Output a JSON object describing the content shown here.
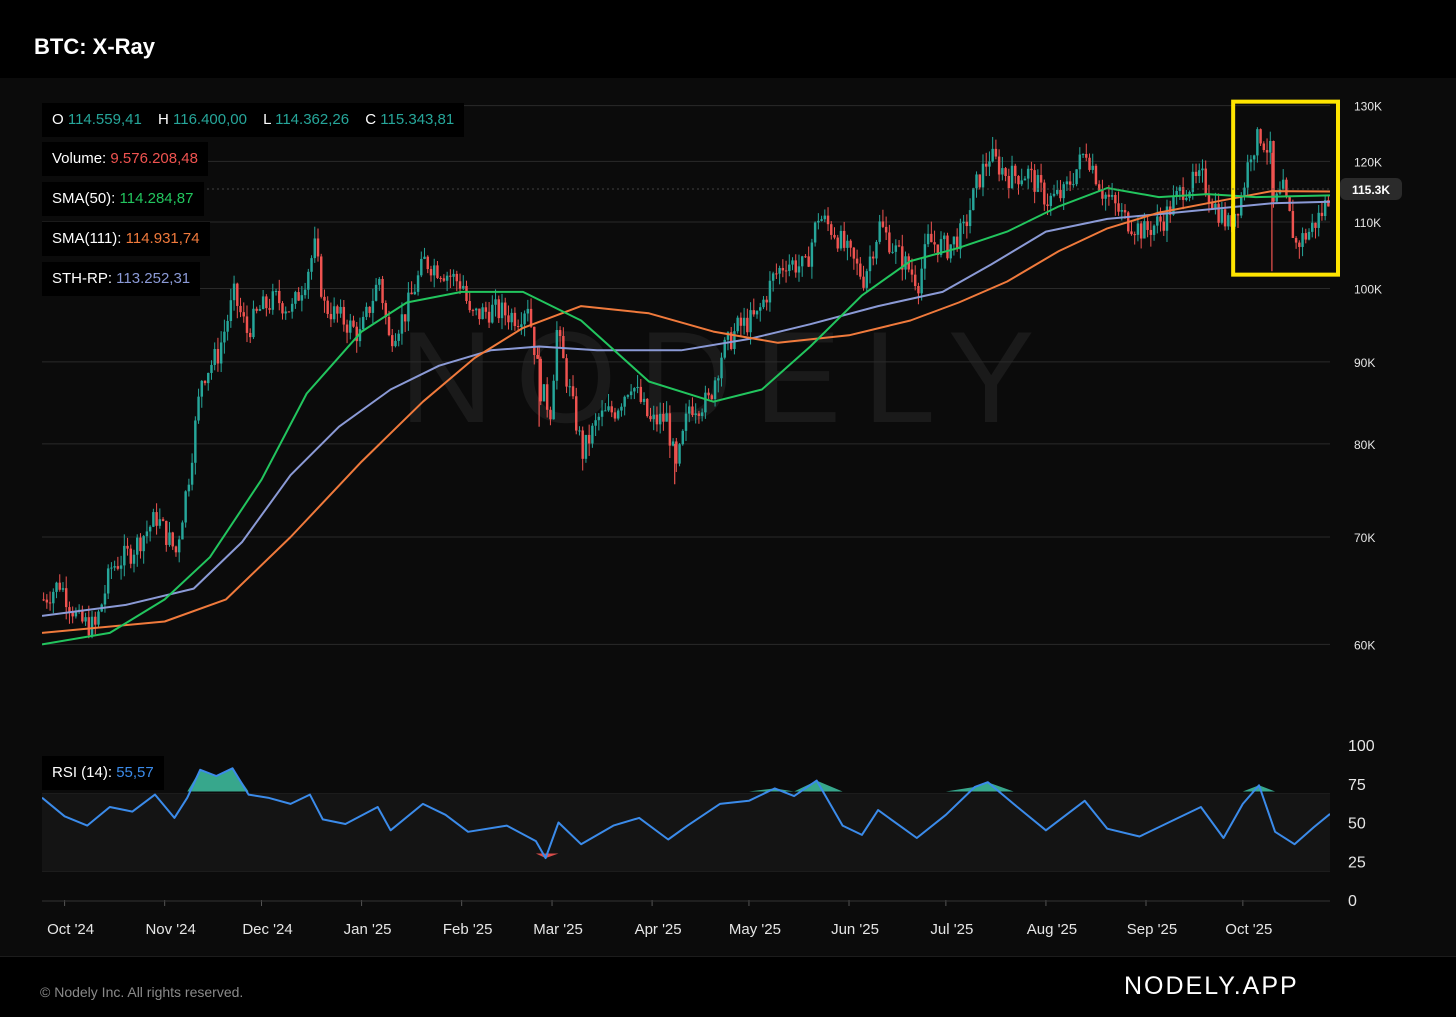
{
  "header": {
    "title": "BTC: X-Ray"
  },
  "footer": {
    "copyright": "© Nodely Inc. All rights reserved.",
    "brand": "NODELY.APP"
  },
  "watermark": "NODELY",
  "colors": {
    "up": "#26a69a",
    "down": "#ef5350",
    "sma50": "#22c55e",
    "sma111": "#f07a3c",
    "sthrp": "#8b9ad6",
    "rsi": "#3b8bea",
    "highlight": "#ffe500"
  },
  "legend": {
    "ohlc": {
      "o_label": "O",
      "o_value": "114.559,41",
      "h_label": "H",
      "h_value": "116.400,00",
      "l_label": "L",
      "l_value": "114.362,26",
      "c_label": "C",
      "c_value": "115.343,81"
    },
    "volume": {
      "label": "Volume:",
      "value": "9.576.208,48"
    },
    "sma50": {
      "label": "SMA(50):",
      "value": "114.284,87"
    },
    "sma111": {
      "label": "SMA(111):",
      "value": "114.931,74"
    },
    "sthrp": {
      "label": "STH-RP:",
      "value": "113.252,31"
    },
    "rsi": {
      "label": "RSI (14):",
      "value": "55,57"
    }
  },
  "chart_data": {
    "type": "candlestick",
    "title": "BTC: X-Ray",
    "price_axis": {
      "ticks": [
        60000,
        70000,
        80000,
        90000,
        100000,
        110000,
        120000,
        130000
      ],
      "tick_labels": [
        "60K",
        "70K",
        "80K",
        "90K",
        "100K",
        "110K",
        "120K",
        "130K"
      ],
      "scale": "log",
      "range": [
        55000,
        132000
      ]
    },
    "last_price_label": "115.3K",
    "last_price": 115343.81,
    "x_axis": {
      "start": "2024-09-24",
      "end": "2025-10-28",
      "ticks": [
        {
          "date": "2024-10-01",
          "label": "Oct '24"
        },
        {
          "date": "2024-11-01",
          "label": "Nov '24"
        },
        {
          "date": "2024-12-01",
          "label": "Dec '24"
        },
        {
          "date": "2025-01-01",
          "label": "Jan '25"
        },
        {
          "date": "2025-02-01",
          "label": "Feb '25"
        },
        {
          "date": "2025-03-01",
          "label": "Mar '25"
        },
        {
          "date": "2025-04-01",
          "label": "Apr '25"
        },
        {
          "date": "2025-05-01",
          "label": "May '25"
        },
        {
          "date": "2025-06-01",
          "label": "Jun '25"
        },
        {
          "date": "2025-07-01",
          "label": "Jul '25"
        },
        {
          "date": "2025-08-01",
          "label": "Aug '25"
        },
        {
          "date": "2025-09-01",
          "label": "Sep '25"
        },
        {
          "date": "2025-10-01",
          "label": "Oct '25"
        }
      ]
    },
    "price_close": [
      {
        "date": "2024-09-24",
        "value": 64000
      },
      {
        "date": "2024-09-29",
        "value": 65500
      },
      {
        "date": "2024-10-05",
        "value": 62000
      },
      {
        "date": "2024-10-10",
        "value": 61500
      },
      {
        "date": "2024-10-15",
        "value": 67000
      },
      {
        "date": "2024-10-21",
        "value": 68500
      },
      {
        "date": "2024-10-29",
        "value": 72000
      },
      {
        "date": "2024-11-04",
        "value": 68500
      },
      {
        "date": "2024-11-08",
        "value": 76500
      },
      {
        "date": "2024-11-12",
        "value": 88000
      },
      {
        "date": "2024-11-17",
        "value": 91000
      },
      {
        "date": "2024-11-22",
        "value": 99000
      },
      {
        "date": "2024-11-26",
        "value": 94000
      },
      {
        "date": "2024-11-30",
        "value": 97000
      },
      {
        "date": "2024-12-05",
        "value": 98500
      },
      {
        "date": "2024-12-10",
        "value": 97000
      },
      {
        "date": "2024-12-14",
        "value": 101500
      },
      {
        "date": "2024-12-17",
        "value": 106000
      },
      {
        "date": "2024-12-20",
        "value": 97500
      },
      {
        "date": "2024-12-26",
        "value": 95500
      },
      {
        "date": "2024-12-31",
        "value": 93500
      },
      {
        "date": "2025-01-06",
        "value": 101500
      },
      {
        "date": "2025-01-09",
        "value": 93000
      },
      {
        "date": "2025-01-14",
        "value": 96500
      },
      {
        "date": "2025-01-20",
        "value": 104000
      },
      {
        "date": "2025-01-26",
        "value": 102500
      },
      {
        "date": "2025-02-01",
        "value": 100500
      },
      {
        "date": "2025-02-03",
        "value": 96000
      },
      {
        "date": "2025-02-10",
        "value": 97000
      },
      {
        "date": "2025-02-18",
        "value": 96000
      },
      {
        "date": "2025-02-21",
        "value": 98000
      },
      {
        "date": "2025-02-25",
        "value": 86500
      },
      {
        "date": "2025-02-28",
        "value": 84000
      },
      {
        "date": "2025-03-02",
        "value": 94000
      },
      {
        "date": "2025-03-05",
        "value": 88000
      },
      {
        "date": "2025-03-10",
        "value": 79000
      },
      {
        "date": "2025-03-15",
        "value": 83000
      },
      {
        "date": "2025-03-20",
        "value": 84000
      },
      {
        "date": "2025-03-25",
        "value": 87500
      },
      {
        "date": "2025-03-31",
        "value": 82500
      },
      {
        "date": "2025-04-05",
        "value": 83000
      },
      {
        "date": "2025-04-08",
        "value": 77000
      },
      {
        "date": "2025-04-12",
        "value": 84500
      },
      {
        "date": "2025-04-18",
        "value": 85000
      },
      {
        "date": "2025-04-22",
        "value": 91000
      },
      {
        "date": "2025-04-27",
        "value": 94500
      },
      {
        "date": "2025-05-03",
        "value": 96000
      },
      {
        "date": "2025-05-08",
        "value": 101500
      },
      {
        "date": "2025-05-12",
        "value": 104000
      },
      {
        "date": "2025-05-18",
        "value": 103000
      },
      {
        "date": "2025-05-22",
        "value": 111000
      },
      {
        "date": "2025-05-27",
        "value": 108500
      },
      {
        "date": "2025-06-01",
        "value": 104500
      },
      {
        "date": "2025-06-05",
        "value": 101500
      },
      {
        "date": "2025-06-10",
        "value": 109500
      },
      {
        "date": "2025-06-15",
        "value": 105500
      },
      {
        "date": "2025-06-22",
        "value": 101000
      },
      {
        "date": "2025-06-25",
        "value": 107000
      },
      {
        "date": "2025-07-01",
        "value": 106000
      },
      {
        "date": "2025-07-06",
        "value": 108500
      },
      {
        "date": "2025-07-10",
        "value": 116000
      },
      {
        "date": "2025-07-14",
        "value": 121000
      },
      {
        "date": "2025-07-20",
        "value": 117500
      },
      {
        "date": "2025-07-26",
        "value": 118000
      },
      {
        "date": "2025-08-01",
        "value": 113500
      },
      {
        "date": "2025-08-06",
        "value": 114500
      },
      {
        "date": "2025-08-13",
        "value": 122000
      },
      {
        "date": "2025-08-18",
        "value": 115000
      },
      {
        "date": "2025-08-25",
        "value": 110500
      },
      {
        "date": "2025-08-31",
        "value": 108500
      },
      {
        "date": "2025-09-06",
        "value": 110500
      },
      {
        "date": "2025-09-12",
        "value": 115500
      },
      {
        "date": "2025-09-18",
        "value": 117000
      },
      {
        "date": "2025-09-22",
        "value": 112500
      },
      {
        "date": "2025-09-26",
        "value": 109500
      },
      {
        "date": "2025-09-30",
        "value": 114000
      },
      {
        "date": "2025-10-03",
        "value": 122000
      },
      {
        "date": "2025-10-06",
        "value": 124500
      },
      {
        "date": "2025-10-09",
        "value": 121500
      },
      {
        "date": "2025-10-10",
        "value": 112500
      },
      {
        "date": "2025-10-13",
        "value": 115000
      },
      {
        "date": "2025-10-17",
        "value": 106500
      },
      {
        "date": "2025-10-21",
        "value": 108500
      },
      {
        "date": "2025-10-25",
        "value": 111500
      },
      {
        "date": "2025-10-28",
        "value": 115300
      }
    ],
    "sma50": [
      {
        "date": "2024-09-24",
        "value": 60000
      },
      {
        "date": "2024-10-15",
        "value": 61000
      },
      {
        "date": "2024-11-01",
        "value": 64000
      },
      {
        "date": "2024-11-15",
        "value": 68000
      },
      {
        "date": "2024-12-01",
        "value": 76000
      },
      {
        "date": "2024-12-15",
        "value": 86000
      },
      {
        "date": "2025-01-01",
        "value": 94000
      },
      {
        "date": "2025-01-15",
        "value": 98000
      },
      {
        "date": "2025-02-01",
        "value": 99500
      },
      {
        "date": "2025-02-20",
        "value": 99500
      },
      {
        "date": "2025-03-10",
        "value": 95500
      },
      {
        "date": "2025-03-31",
        "value": 87500
      },
      {
        "date": "2025-04-20",
        "value": 85000
      },
      {
        "date": "2025-05-05",
        "value": 86500
      },
      {
        "date": "2025-05-20",
        "value": 92000
      },
      {
        "date": "2025-06-05",
        "value": 99000
      },
      {
        "date": "2025-06-20",
        "value": 104000
      },
      {
        "date": "2025-07-05",
        "value": 106000
      },
      {
        "date": "2025-07-20",
        "value": 108500
      },
      {
        "date": "2025-08-05",
        "value": 112500
      },
      {
        "date": "2025-08-20",
        "value": 115500
      },
      {
        "date": "2025-09-05",
        "value": 114000
      },
      {
        "date": "2025-09-20",
        "value": 114500
      },
      {
        "date": "2025-10-05",
        "value": 114000
      },
      {
        "date": "2025-10-28",
        "value": 114285
      }
    ],
    "sma111": [
      {
        "date": "2024-09-24",
        "value": 61000
      },
      {
        "date": "2024-11-01",
        "value": 62000
      },
      {
        "date": "2024-11-20",
        "value": 64000
      },
      {
        "date": "2024-12-10",
        "value": 70000
      },
      {
        "date": "2025-01-01",
        "value": 78000
      },
      {
        "date": "2025-01-20",
        "value": 85000
      },
      {
        "date": "2025-02-05",
        "value": 90500
      },
      {
        "date": "2025-02-20",
        "value": 94500
      },
      {
        "date": "2025-03-10",
        "value": 97500
      },
      {
        "date": "2025-03-31",
        "value": 96500
      },
      {
        "date": "2025-04-20",
        "value": 94000
      },
      {
        "date": "2025-05-10",
        "value": 92500
      },
      {
        "date": "2025-06-01",
        "value": 93500
      },
      {
        "date": "2025-06-20",
        "value": 95500
      },
      {
        "date": "2025-07-05",
        "value": 98000
      },
      {
        "date": "2025-07-20",
        "value": 101000
      },
      {
        "date": "2025-08-05",
        "value": 105500
      },
      {
        "date": "2025-08-20",
        "value": 109000
      },
      {
        "date": "2025-09-05",
        "value": 111500
      },
      {
        "date": "2025-09-25",
        "value": 113500
      },
      {
        "date": "2025-10-10",
        "value": 115000
      },
      {
        "date": "2025-10-28",
        "value": 114932
      }
    ],
    "sth_rp": [
      {
        "date": "2024-09-24",
        "value": 62500
      },
      {
        "date": "2024-10-20",
        "value": 63500
      },
      {
        "date": "2024-11-10",
        "value": 65000
      },
      {
        "date": "2024-11-25",
        "value": 69500
      },
      {
        "date": "2024-12-10",
        "value": 76500
      },
      {
        "date": "2024-12-25",
        "value": 82000
      },
      {
        "date": "2025-01-10",
        "value": 86500
      },
      {
        "date": "2025-01-25",
        "value": 89500
      },
      {
        "date": "2025-02-10",
        "value": 91500
      },
      {
        "date": "2025-02-25",
        "value": 92000
      },
      {
        "date": "2025-03-15",
        "value": 91500
      },
      {
        "date": "2025-04-10",
        "value": 91500
      },
      {
        "date": "2025-05-01",
        "value": 93000
      },
      {
        "date": "2025-05-20",
        "value": 95000
      },
      {
        "date": "2025-06-10",
        "value": 97500
      },
      {
        "date": "2025-06-30",
        "value": 99500
      },
      {
        "date": "2025-07-15",
        "value": 103500
      },
      {
        "date": "2025-08-01",
        "value": 108500
      },
      {
        "date": "2025-08-20",
        "value": 110500
      },
      {
        "date": "2025-09-10",
        "value": 111500
      },
      {
        "date": "2025-09-30",
        "value": 112500
      },
      {
        "date": "2025-10-10",
        "value": 113000
      },
      {
        "date": "2025-10-28",
        "value": 113252
      }
    ],
    "rsi": {
      "axis_ticks": [
        0,
        25,
        50,
        75,
        100
      ],
      "range": [
        0,
        100
      ],
      "overbought": 70,
      "oversold": 30,
      "values": [
        {
          "date": "2024-09-24",
          "value": 66
        },
        {
          "date": "2024-10-01",
          "value": 54
        },
        {
          "date": "2024-10-08",
          "value": 48
        },
        {
          "date": "2024-10-15",
          "value": 60
        },
        {
          "date": "2024-10-22",
          "value": 57
        },
        {
          "date": "2024-10-29",
          "value": 68
        },
        {
          "date": "2024-11-04",
          "value": 53
        },
        {
          "date": "2024-11-08",
          "value": 66
        },
        {
          "date": "2024-11-12",
          "value": 84
        },
        {
          "date": "2024-11-17",
          "value": 80
        },
        {
          "date": "2024-11-22",
          "value": 85
        },
        {
          "date": "2024-11-27",
          "value": 68
        },
        {
          "date": "2024-12-03",
          "value": 66
        },
        {
          "date": "2024-12-10",
          "value": 62
        },
        {
          "date": "2024-12-16",
          "value": 68
        },
        {
          "date": "2024-12-20",
          "value": 52
        },
        {
          "date": "2024-12-27",
          "value": 49
        },
        {
          "date": "2025-01-06",
          "value": 60
        },
        {
          "date": "2025-01-10",
          "value": 45
        },
        {
          "date": "2025-01-20",
          "value": 62
        },
        {
          "date": "2025-01-27",
          "value": 55
        },
        {
          "date": "2025-02-03",
          "value": 44
        },
        {
          "date": "2025-02-15",
          "value": 48
        },
        {
          "date": "2025-02-24",
          "value": 38
        },
        {
          "date": "2025-02-27",
          "value": 27
        },
        {
          "date": "2025-03-03",
          "value": 50
        },
        {
          "date": "2025-03-10",
          "value": 36
        },
        {
          "date": "2025-03-20",
          "value": 48
        },
        {
          "date": "2025-03-28",
          "value": 53
        },
        {
          "date": "2025-04-06",
          "value": 39
        },
        {
          "date": "2025-04-12",
          "value": 48
        },
        {
          "date": "2025-04-22",
          "value": 62
        },
        {
          "date": "2025-05-01",
          "value": 64
        },
        {
          "date": "2025-05-09",
          "value": 72
        },
        {
          "date": "2025-05-15",
          "value": 67
        },
        {
          "date": "2025-05-22",
          "value": 77
        },
        {
          "date": "2025-05-30",
          "value": 48
        },
        {
          "date": "2025-06-05",
          "value": 42
        },
        {
          "date": "2025-06-10",
          "value": 58
        },
        {
          "date": "2025-06-18",
          "value": 46
        },
        {
          "date": "2025-06-22",
          "value": 40
        },
        {
          "date": "2025-07-01",
          "value": 55
        },
        {
          "date": "2025-07-10",
          "value": 73
        },
        {
          "date": "2025-07-14",
          "value": 76
        },
        {
          "date": "2025-07-22",
          "value": 62
        },
        {
          "date": "2025-08-01",
          "value": 45
        },
        {
          "date": "2025-08-13",
          "value": 64
        },
        {
          "date": "2025-08-20",
          "value": 46
        },
        {
          "date": "2025-08-30",
          "value": 41
        },
        {
          "date": "2025-09-10",
          "value": 52
        },
        {
          "date": "2025-09-18",
          "value": 60
        },
        {
          "date": "2025-09-25",
          "value": 40
        },
        {
          "date": "2025-10-01",
          "value": 62
        },
        {
          "date": "2025-10-06",
          "value": 74
        },
        {
          "date": "2025-10-11",
          "value": 44
        },
        {
          "date": "2025-10-17",
          "value": 36
        },
        {
          "date": "2025-10-23",
          "value": 47
        },
        {
          "date": "2025-10-28",
          "value": 55.57
        }
      ]
    },
    "highlight": {
      "from": "2025-09-28",
      "to": "2025-10-28",
      "price_from": 102000,
      "price_to": 130000,
      "color": "#ffe500"
    }
  }
}
